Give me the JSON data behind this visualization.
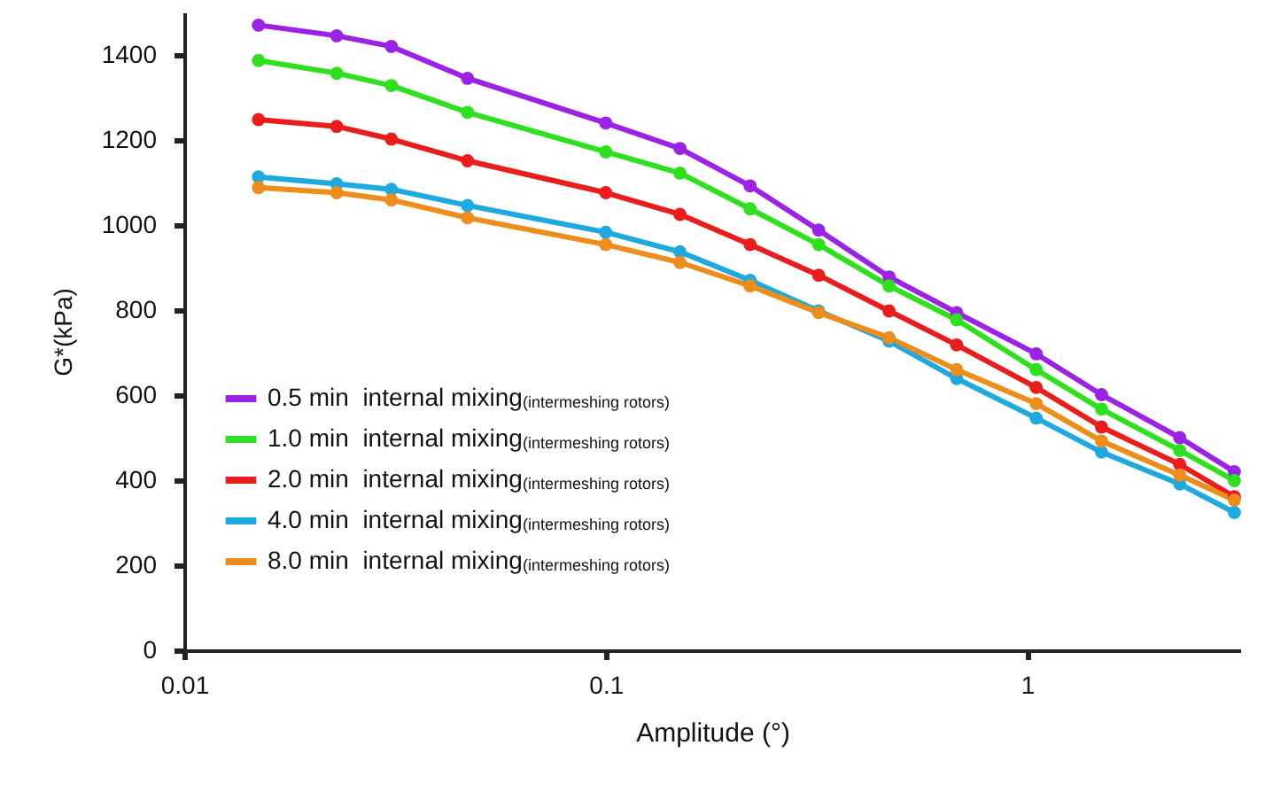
{
  "chart_data": {
    "type": "line",
    "xlabel": "Amplitude (°)",
    "ylabel": "G*(kPa)",
    "log": "x",
    "xlim": [
      0.01,
      3.2
    ],
    "xticks": [
      0.01,
      0.1,
      1
    ],
    "ylim": [
      0,
      1500
    ],
    "yticks": [
      0,
      200,
      400,
      600,
      800,
      1000,
      1200,
      1400
    ],
    "grid": false,
    "legend": "bottom left",
    "marker": "circle",
    "line_style": "solid",
    "x": [
      0.015,
      0.023,
      0.031,
      0.047,
      0.1,
      0.15,
      0.22,
      0.32,
      0.47,
      0.68,
      1.05,
      1.5,
      2.3,
      3.1
    ],
    "series": [
      {
        "name": "0.5 min  internal mixing$_{(intermeshing rotors)}$",
        "color": "#9b22e6",
        "values": [
          1470,
          1445,
          1420,
          1345,
          1240,
          1180,
          1092,
          988,
          878,
          794,
          697,
          601,
          500,
          420
        ]
      },
      {
        "name": "1.0 min  internal mixing$_{(intermeshing rotors)}$",
        "color": "#2ee01e",
        "values": [
          1387,
          1357,
          1328,
          1265,
          1172,
          1122,
          1038,
          954,
          857,
          777,
          660,
          567,
          470,
          399
        ]
      },
      {
        "name": "2.0 min  internal mixing$_{(intermeshing rotors)}$",
        "color": "#ea1c1c",
        "values": [
          1248,
          1232,
          1202,
          1151,
          1076,
          1025,
          954,
          882,
          798,
          718,
          618,
          525,
          437,
          361
        ]
      },
      {
        "name": "4.0 min  internal mixing$_{(intermeshing rotors)}$",
        "color": "#1eaade",
        "values": [
          1113,
          1097,
          1084,
          1046,
          983,
          937,
          870,
          798,
          727,
          639,
          546,
          466,
          391,
          324
        ]
      },
      {
        "name": "8.0 min  internal mixing$_{(intermeshing rotors)}$",
        "color": "#ee8c1c",
        "values": [
          1088,
          1076,
          1059,
          1017,
          954,
          912,
          857,
          794,
          735,
          660,
          580,
          492,
          412,
          353
        ]
      }
    ]
  }
}
